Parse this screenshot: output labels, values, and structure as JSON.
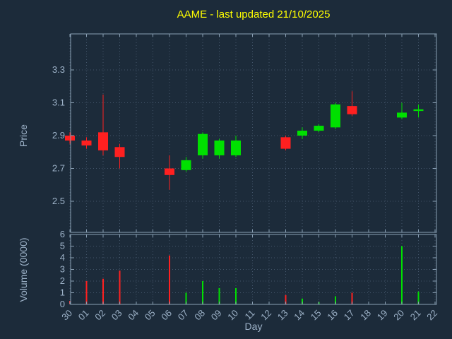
{
  "chart_data": {
    "type": "candlestick",
    "title": "AAME - last updated 21/10/2025",
    "xlabel": "Day",
    "price_ylabel": "Price",
    "volume_ylabel": "Volume (0000)",
    "x_ticks": [
      "30",
      "01",
      "02",
      "03",
      "04",
      "05",
      "06",
      "07",
      "08",
      "09",
      "10",
      "11",
      "12",
      "13",
      "14",
      "15",
      "16",
      "17",
      "18",
      "19",
      "20",
      "21",
      "22"
    ],
    "price_ticks": [
      "2.5",
      "2.7",
      "2.9",
      "3.1",
      "3.3"
    ],
    "volume_ticks": [
      "0",
      "1",
      "2",
      "3",
      "4",
      "5",
      "6"
    ],
    "price_axis_range": [
      2.33,
      3.52
    ],
    "volume_axis_range": [
      0,
      6
    ],
    "grid": true,
    "legend": "none",
    "colors": {
      "background": "#1c2b3a",
      "title": "#ffff00",
      "axis_text": "#9db2c8",
      "border": "#8aa0b4",
      "grid": "#44566b",
      "up": "#00e000",
      "down": "#ff2020"
    },
    "candles": [
      {
        "day": "30",
        "open": 2.9,
        "high": 2.92,
        "low": 2.85,
        "close": 2.87,
        "volume": 0.3
      },
      {
        "day": "01",
        "open": 2.87,
        "high": 2.89,
        "low": 2.82,
        "close": 2.84,
        "volume": 2.0
      },
      {
        "day": "02",
        "open": 2.92,
        "high": 3.15,
        "low": 2.78,
        "close": 2.81,
        "volume": 2.2
      },
      {
        "day": "03",
        "open": 2.83,
        "high": 2.85,
        "low": 2.7,
        "close": 2.77,
        "volume": 2.9
      },
      {
        "day": "06",
        "open": 2.7,
        "high": 2.78,
        "low": 2.57,
        "close": 2.66,
        "volume": 4.2
      },
      {
        "day": "07",
        "open": 2.69,
        "high": 2.77,
        "low": 2.68,
        "close": 2.75,
        "volume": 1.0
      },
      {
        "day": "08",
        "open": 2.78,
        "high": 2.92,
        "low": 2.76,
        "close": 2.91,
        "volume": 2.0
      },
      {
        "day": "09",
        "open": 2.78,
        "high": 2.88,
        "low": 2.76,
        "close": 2.87,
        "volume": 1.4
      },
      {
        "day": "10",
        "open": 2.78,
        "high": 2.9,
        "low": 2.77,
        "close": 2.87,
        "volume": 1.4
      },
      {
        "day": "13",
        "open": 2.89,
        "high": 2.9,
        "low": 2.81,
        "close": 2.82,
        "volume": 0.8
      },
      {
        "day": "14",
        "open": 2.9,
        "high": 2.95,
        "low": 2.88,
        "close": 2.93,
        "volume": 0.5
      },
      {
        "day": "15",
        "open": 2.93,
        "high": 2.97,
        "low": 2.92,
        "close": 2.96,
        "volume": 0.2
      },
      {
        "day": "16",
        "open": 2.95,
        "high": 3.1,
        "low": 2.94,
        "close": 3.09,
        "volume": 0.7
      },
      {
        "day": "17",
        "open": 3.08,
        "high": 3.17,
        "low": 3.02,
        "close": 3.03,
        "volume": 1.0
      },
      {
        "day": "20",
        "open": 3.01,
        "high": 3.1,
        "low": 3.0,
        "close": 3.04,
        "volume": 5.0
      },
      {
        "day": "21",
        "open": 3.05,
        "high": 3.09,
        "low": 3.01,
        "close": 3.06,
        "volume": 1.1
      }
    ]
  }
}
